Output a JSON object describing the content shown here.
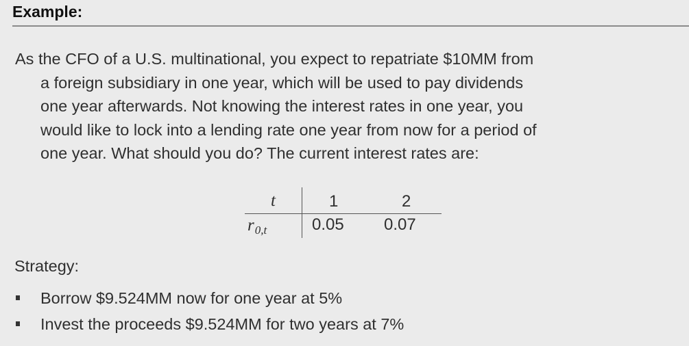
{
  "title": "Example:",
  "paragraph_lines": [
    "As the CFO of a U.S. multinational, you expect to repatriate $10MM from",
    "a foreign subsidiary in one year, which will be used to pay dividends",
    "one year afterwards. Not knowing the interest rates in one year, you",
    "would like to lock into a lending rate one year from now for a period of",
    "one year. What should you do?  The current interest rates are:"
  ],
  "rate_table": {
    "header_label": "t",
    "row_label": "r",
    "row_label_subscript": "0,t",
    "headers": [
      "1",
      "2"
    ],
    "values": [
      "0.05",
      "0.07"
    ]
  },
  "strategy": {
    "label": "Strategy:",
    "items": [
      "Borrow $9.524MM now for one year at 5%",
      "Invest the proceeds $9.524MM for two years at 7%"
    ]
  }
}
